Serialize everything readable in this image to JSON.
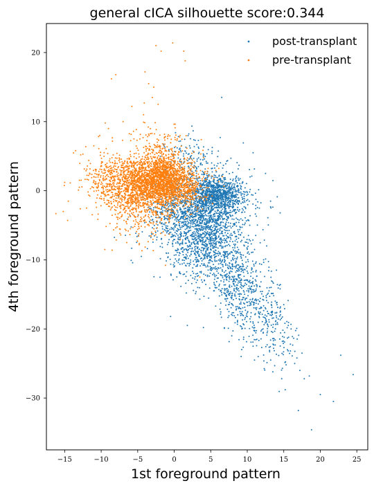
{
  "chart_data": {
    "type": "scatter",
    "title": "general cICA silhouette score:0.344",
    "xlabel": "1st foreground pattern",
    "ylabel": "4th foreground pattern",
    "xlim": [
      -17.5,
      26.5
    ],
    "ylim": [
      -37.5,
      24.2
    ],
    "xticks": [
      -15,
      -10,
      -5,
      0,
      5,
      10,
      15,
      20,
      25
    ],
    "yticks": [
      20,
      10,
      0,
      -10,
      -20,
      -30
    ],
    "xtick_labels": [
      "−15",
      "−10",
      "−5",
      "0",
      "5",
      "10",
      "15",
      "20",
      "25"
    ],
    "ytick_labels": [
      "20",
      "10",
      "0",
      "−10",
      "−20",
      "−30"
    ],
    "grid": false,
    "legend_position": "top-right",
    "series": [
      {
        "name": "post-transplant",
        "color": "#1f77b4",
        "points": [
          [
            6.5,
            13.5
          ],
          [
            12.5,
            2.5
          ],
          [
            10.8,
            5.5
          ],
          [
            13.2,
            -1.5
          ],
          [
            14.5,
            -3.2
          ],
          [
            -0.5,
            -18.2
          ],
          [
            1.8,
            -19.5
          ],
          [
            4.0,
            -19.8
          ],
          [
            -4.5,
            -9.5
          ],
          [
            11.0,
            -8.5
          ],
          [
            14.0,
            -11.5
          ],
          [
            14.5,
            -14.2
          ],
          [
            15.0,
            -16.5
          ],
          [
            16.0,
            -20.0
          ],
          [
            17.5,
            -23.5
          ],
          [
            16.8,
            -24.2
          ],
          [
            17.2,
            -26.0
          ],
          [
            17.8,
            -27.2
          ],
          [
            18.5,
            -26.8
          ],
          [
            15.2,
            -28.8
          ],
          [
            17.0,
            -31.8
          ],
          [
            18.8,
            -34.6
          ],
          [
            20.0,
            -29.5
          ],
          [
            21.8,
            -30.5
          ],
          [
            22.8,
            -23.8
          ],
          [
            24.5,
            -26.6
          ],
          [
            13.0,
            -19.0
          ],
          [
            14.8,
            -21.8
          ],
          [
            11.5,
            -24.0
          ],
          [
            12.5,
            -18.5
          ],
          [
            9.5,
            -21.5
          ],
          [
            10.8,
            -22.5
          ],
          [
            16.5,
            -25.0
          ],
          [
            13.6,
            -22.8
          ],
          [
            12.2,
            -20.5
          ],
          [
            15.5,
            -23.0
          ],
          [
            9.0,
            -17.5
          ],
          [
            10.5,
            -16.5
          ],
          [
            11.0,
            -24.5
          ],
          [
            13.5,
            -26.2
          ]
        ],
        "cloud": [
          {
            "center": [
              4.5,
              -2.0
            ],
            "spread": [
              3.0,
              2.6
            ],
            "count": 1300
          },
          {
            "center": [
              6.0,
              -0.5
            ],
            "spread": [
              1.6,
              0.9
            ],
            "count": 500
          },
          {
            "center": [
              4.5,
              -8.0
            ],
            "spread": [
              2.4,
              2.6
            ],
            "count": 700
          },
          {
            "center": [
              8.5,
              -13.0
            ],
            "spread": [
              2.0,
              2.6
            ],
            "count": 380
          },
          {
            "center": [
              11.5,
              -17.5
            ],
            "spread": [
              2.0,
              2.4
            ],
            "count": 220
          },
          {
            "center": [
              14.0,
              -21.5
            ],
            "spread": [
              1.8,
              2.2
            ],
            "count": 90
          },
          {
            "center": [
              0.5,
              -4.5
            ],
            "spread": [
              2.6,
              2.4
            ],
            "count": 320
          },
          {
            "center": [
              2.5,
              4.5
            ],
            "spread": [
              1.8,
              2.0
            ],
            "count": 140
          }
        ]
      },
      {
        "name": "pre-transplant",
        "color": "#ff7f0e",
        "points": [
          [
            -0.2,
            21.4
          ],
          [
            -2.5,
            21.0
          ],
          [
            -1.8,
            20.2
          ],
          [
            1.3,
            20.2
          ],
          [
            1.5,
            18.8
          ],
          [
            -8.0,
            16.8
          ],
          [
            -8.6,
            16.2
          ],
          [
            -4.0,
            17.2
          ],
          [
            -3.5,
            15.5
          ],
          [
            -2.8,
            15.0
          ],
          [
            -3.0,
            13.5
          ],
          [
            -2.2,
            12.5
          ],
          [
            -5.8,
            12.2
          ],
          [
            -12.5,
            5.3
          ],
          [
            -13.5,
            5.8
          ],
          [
            -15.0,
            1.2
          ],
          [
            -14.5,
            -1.5
          ],
          [
            -15.2,
            -3.0
          ],
          [
            -16.2,
            -3.3
          ],
          [
            -14.6,
            -4.3
          ],
          [
            -9.5,
            -8.5
          ],
          [
            -8.5,
            -8.6
          ],
          [
            -6.5,
            -7.5
          ],
          [
            -4.8,
            -7.8
          ],
          [
            -1.2,
            -10.8
          ],
          [
            3.5,
            -12.5
          ],
          [
            -10.2,
            8.0
          ],
          [
            -11.0,
            6.5
          ],
          [
            -9.0,
            9.0
          ],
          [
            -7.0,
            10.0
          ],
          [
            -4.2,
            11.0
          ],
          [
            0.8,
            8.0
          ],
          [
            -6.0,
            -5.5
          ],
          [
            -12.0,
            -2.5
          ],
          [
            -13.0,
            0.5
          ]
        ],
        "cloud": [
          {
            "center": [
              -2.0,
              1.5
            ],
            "spread": [
              2.2,
              1.8
            ],
            "count": 1700
          },
          {
            "center": [
              -5.5,
              0.5
            ],
            "spread": [
              2.6,
              2.2
            ],
            "count": 700
          },
          {
            "center": [
              -8.5,
              1.5
            ],
            "spread": [
              2.2,
              2.2
            ],
            "count": 260
          },
          {
            "center": [
              -2.0,
              6.0
            ],
            "spread": [
              1.8,
              2.0
            ],
            "count": 180
          },
          {
            "center": [
              -4.0,
              -3.5
            ],
            "spread": [
              2.4,
              2.0
            ],
            "count": 200
          },
          {
            "center": [
              1.0,
              0.5
            ],
            "spread": [
              1.8,
              1.4
            ],
            "count": 350
          }
        ]
      }
    ]
  }
}
